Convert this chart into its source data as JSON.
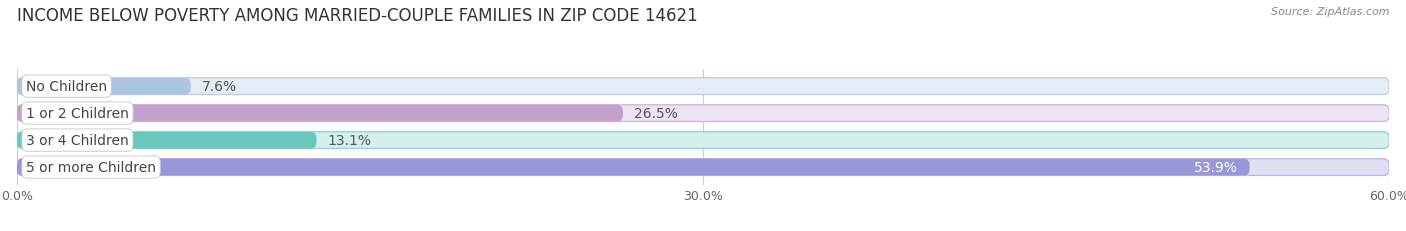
{
  "title": "INCOME BELOW POVERTY AMONG MARRIED-COUPLE FAMILIES IN ZIP CODE 14621",
  "source": "Source: ZipAtlas.com",
  "categories": [
    "No Children",
    "1 or 2 Children",
    "3 or 4 Children",
    "5 or more Children"
  ],
  "values": [
    7.6,
    26.5,
    13.1,
    53.9
  ],
  "bar_colors": [
    "#aac4e2",
    "#c4a0cc",
    "#68c8c0",
    "#9898d8"
  ],
  "bar_bg_colors": [
    "#e4ecf6",
    "#ece4f4",
    "#d4f0ee",
    "#e0e0f4"
  ],
  "bar_edge_colors": [
    "#c0d0e4",
    "#d0b8dc",
    "#90d8d4",
    "#b8b8e4"
  ],
  "value_colors": [
    "#555555",
    "#555555",
    "#555555",
    "#ffffff"
  ],
  "xlim": [
    0,
    60
  ],
  "xticks": [
    0.0,
    30.0,
    60.0
  ],
  "xtick_labels": [
    "0.0%",
    "30.0%",
    "60.0%"
  ],
  "bg_color": "#ffffff",
  "title_fontsize": 12,
  "label_fontsize": 10,
  "value_fontsize": 10,
  "bar_height": 0.62,
  "bar_gap": 1.0,
  "figsize": [
    14.06,
    2.32
  ]
}
